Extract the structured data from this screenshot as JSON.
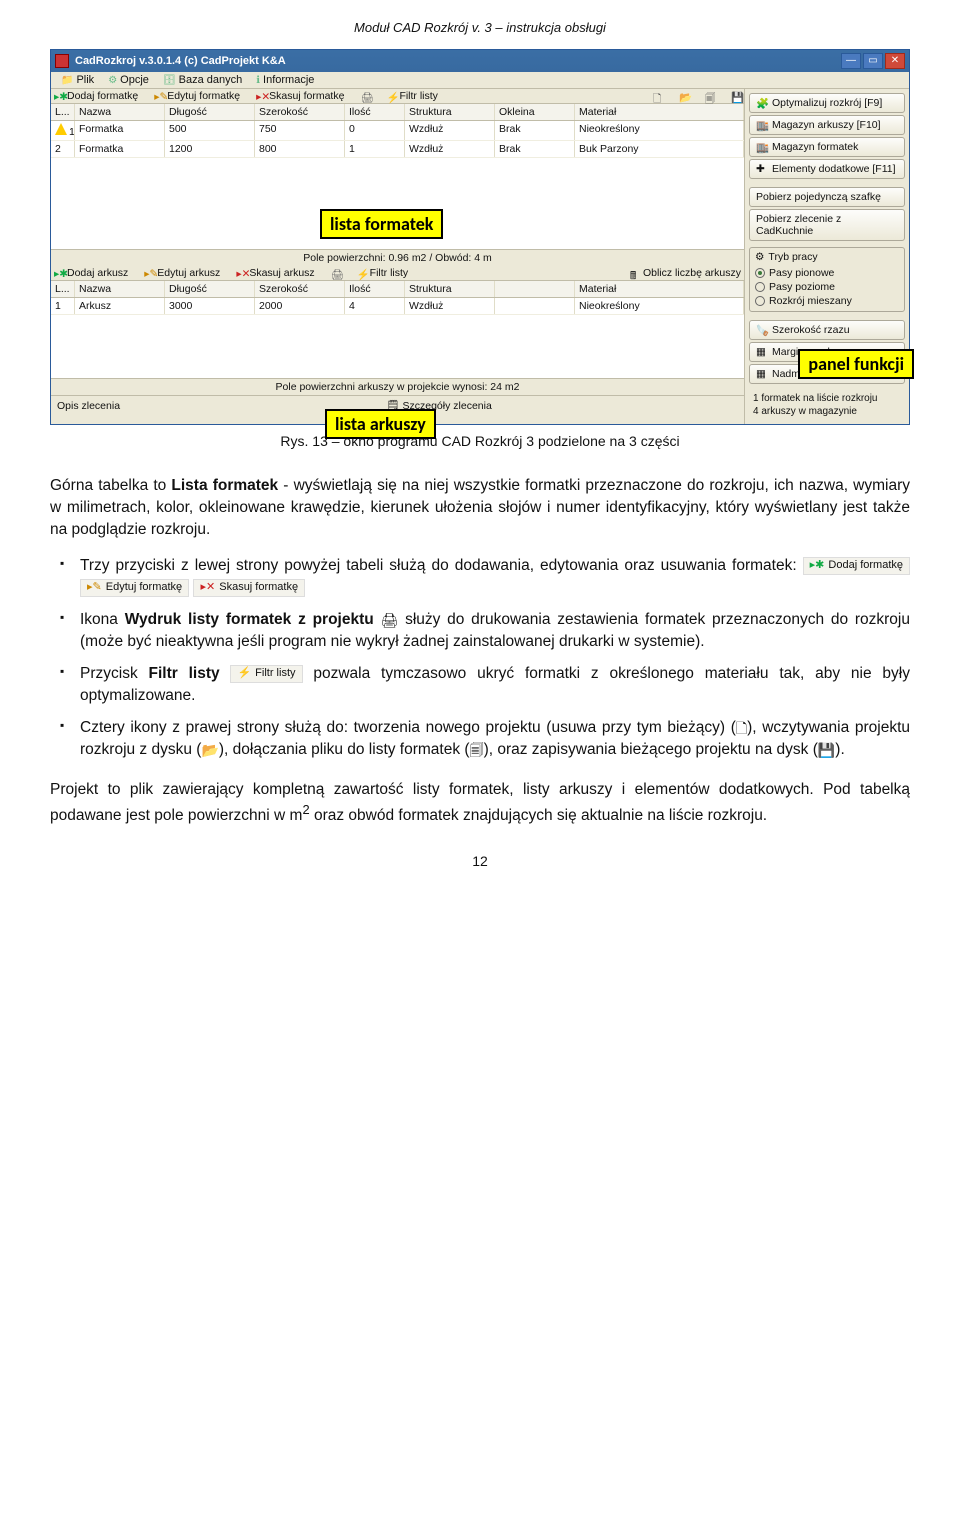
{
  "doc": {
    "header": "Moduł CAD Rozkrój v. 3 – instrukcja obsługi",
    "caption": "Rys. 13 – okno programu CAD Rozkrój 3 podzielone na 3 części",
    "page_num": "12",
    "para1_pre": "Górna tabelka to ",
    "para1_bold": "Lista formatek",
    "para1_post": " - wyświetlają się na niej wszystkie formatki przeznaczone do rozkroju, ich nazwa, wymiary w milimetrach, kolor, okleinowane krawędzie, kierunek ułożenia słojów i numer identyfikacyjny, który wyświetlany jest także na podglądzie rozkroju.",
    "b1": "Trzy przyciski z lewej strony powyżej tabeli służą do dodawania, edytowania oraz usuwania formatek: ",
    "b2_pre": "Ikona ",
    "b2_bold": "Wydruk listy formatek z projektu",
    "b2_post": " służy do drukowania zestawienia formatek przeznaczonych do rozkroju (może być nieaktywna jeśli program nie wykrył żadnej zainstalowanej drukarki w systemie).",
    "b3_pre": "Przycisk ",
    "b3_bold": "Filtr listy",
    "b3_post": " pozwala tymczasowo ukryć formatki z określonego materiału tak, aby nie były optymalizowane.",
    "b4_a": "Cztery ikony z prawej strony służą do: tworzenia nowego projektu (usuwa przy tym bieżący) (",
    "b4_b": "), wczytywania projektu rozkroju z dysku (",
    "b4_c": "), dołączania pliku do listy formatek (",
    "b4_d": "), oraz zapisywania bieżącego projektu na dysk (",
    "b4_e": ").",
    "para2_a": "Projekt to plik zawierający kompletną zawartość listy formatek, listy arkuszy i elementów dodatkowych. Pod tabelką podawane jest pole powierzchni w m",
    "para2_sup": "2",
    "para2_b": " oraz obwód formatek znajdujących się aktualnie na liście rozkroju.",
    "chip": {
      "add": "Dodaj formatkę",
      "edit": "Edytuj formatkę",
      "del": "Skasuj formatkę",
      "filter": "Filtr listy"
    }
  },
  "app": {
    "title": "CadRozkroj v.3.0.1.4 (c) CadProjekt K&A",
    "menu": {
      "plik": "Plik",
      "opcje": "Opcje",
      "baza": "Baza danych",
      "info": "Informacje"
    },
    "labels": {
      "formatek": "lista formatek",
      "arkuszy": "lista arkuszy",
      "panel": "panel funkcji"
    },
    "toolbar1": {
      "add": "Dodaj formatkę",
      "edit": "Edytuj formatkę",
      "del": "Skasuj formatkę",
      "filter": "Filtr listy"
    },
    "toolbar2": {
      "add": "Dodaj arkusz",
      "edit": "Edytuj arkusz",
      "del": "Skasuj arkusz",
      "filter": "Filtr listy",
      "count": "Oblicz liczbę arkuszy"
    },
    "cols": {
      "lp": "L...",
      "nazwa": "Nazwa",
      "dl": "Długość",
      "sz": "Szerokość",
      "il": "Ilość",
      "str": "Struktura",
      "okl": "Okleina",
      "mat": "Materiał"
    },
    "rows1": [
      {
        "lp": "1",
        "nazwa": "Formatka",
        "dl": "500",
        "sz": "750",
        "il": "0",
        "str": "Wzdłuż",
        "okl": "Brak",
        "mat": "Nieokreślony",
        "warn": true
      },
      {
        "lp": "2",
        "nazwa": "Formatka",
        "dl": "1200",
        "sz": "800",
        "il": "1",
        "str": "Wzdłuż",
        "okl": "Brak",
        "mat": "Buk Parzony",
        "warn": false
      }
    ],
    "footer1": "Pole powierzchni: 0.96 m2 / Obwód: 4 m",
    "rows2": [
      {
        "lp": "1",
        "nazwa": "Arkusz",
        "dl": "3000",
        "sz": "2000",
        "il": "4",
        "str": "Wzdłuż",
        "okl": "",
        "mat": "Nieokreślony"
      }
    ],
    "footer2": "Pole powierzchni arkuszy w projekcie wynosi: 24 m2",
    "bottom": {
      "opis": "Opis zlecenia",
      "szcz": "Szczegóły zlecenia"
    },
    "right": {
      "opt": "Optymalizuj rozkrój [F9]",
      "mag_ark": "Magazyn arkuszy [F10]",
      "mag_for": "Magazyn formatek",
      "elem": "Elementy dodatkowe [F11]",
      "poj": "Pobierz pojedynczą szafkę",
      "zlec": "Pobierz zlecenie z CadKuchnie",
      "tryb": "Tryb pracy",
      "r1": "Pasy pionowe",
      "r2": "Pasy poziome",
      "r3": "Rozkrój mieszany",
      "rzaz": "Szerokość rzazu",
      "marg": "Margines arkuszy",
      "nadm": "Nadmiar cięcia formatek",
      "status1": "1 formatek na liście rozkroju",
      "status2": "4 arkuszy w magazynie"
    }
  }
}
